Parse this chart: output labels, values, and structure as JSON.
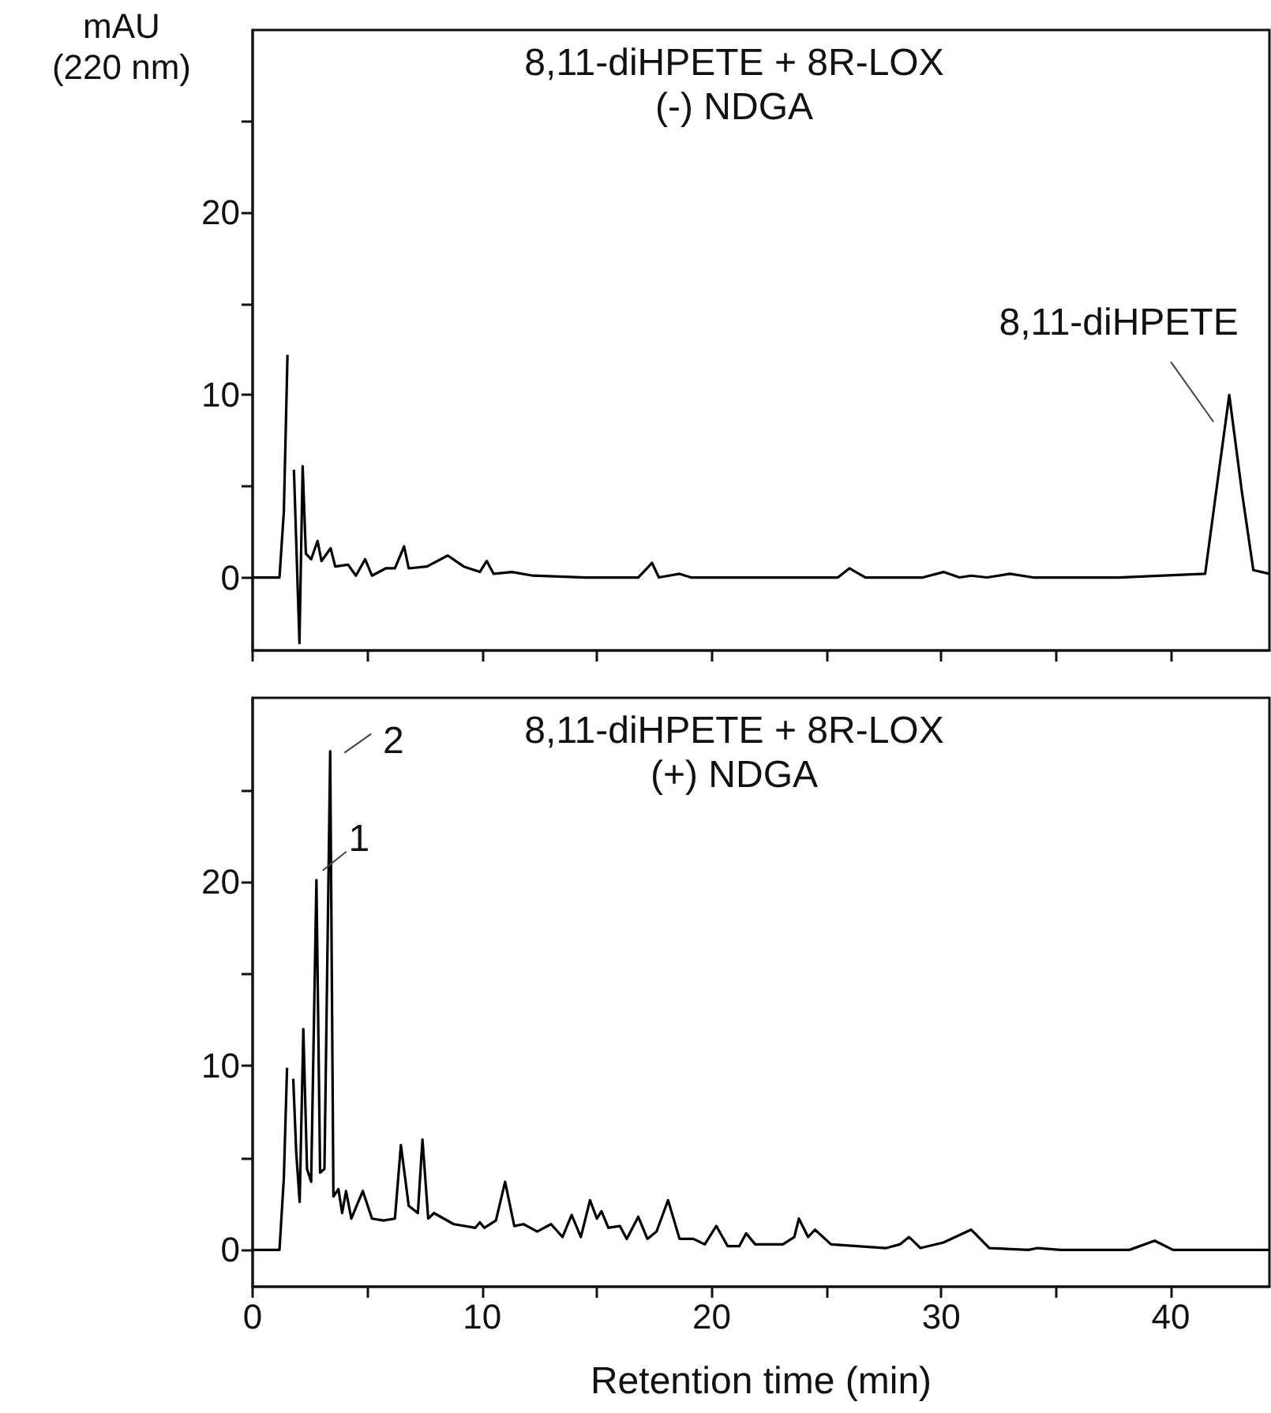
{
  "chart_data": [
    {
      "type": "line",
      "title": "8,11-diHPETE + 8R-LOX",
      "subtitle": "(-) NDGA",
      "ylabel": "mAU\n(220 nm)",
      "xlim": [
        0,
        44.3
      ],
      "ylim": [
        -4,
        30
      ],
      "xticks": [
        0,
        {
          "value": 5,
          "label": null
        },
        10,
        {
          "value": 15,
          "label": null
        },
        20,
        {
          "value": 25,
          "label": null
        },
        30,
        {
          "value": 35,
          "label": null
        },
        40
      ],
      "yticks": [
        0,
        {
          "value": 5,
          "label": null
        },
        10,
        {
          "value": 15,
          "label": null
        },
        20,
        {
          "value": 25,
          "label": null
        }
      ],
      "tick_labels": "y",
      "grid": false,
      "annotations": [
        {
          "text": "8,11-diHPETE",
          "x": 42.55,
          "y": 10.0
        }
      ],
      "series": [
        {
          "color": "#000000",
          "x": [
            0,
            1.17,
            1.36,
            1.52,
            1.6,
            1.7,
            1.8,
            2.04,
            2.18,
            2.32,
            2.55,
            2.83,
            3.0,
            3.4,
            3.6,
            4.16,
            4.5,
            4.9,
            5.2,
            5.8,
            6.2,
            6.6,
            6.8,
            7.6,
            8.5,
            9.2,
            9.9,
            10.2,
            10.5,
            11.3,
            12.2,
            14.5,
            16.8,
            17.4,
            17.7,
            18.6,
            19.1,
            21.2,
            25.5,
            26.0,
            26.7,
            29.2,
            30.1,
            30.8,
            31.3,
            32.0,
            33.0,
            34.0,
            37.7,
            41.5,
            41.98,
            42.55,
            43.1,
            43.6,
            44.3
          ],
          "values": [
            0,
            0,
            3.6,
            12.2,
            null,
            null,
            5.9,
            -3.6,
            6.1,
            1.3,
            1.0,
            2.0,
            0.9,
            1.6,
            0.6,
            0.7,
            0.1,
            1.0,
            0.1,
            0.5,
            0.5,
            1.7,
            0.5,
            0.6,
            1.2,
            0.6,
            0.3,
            0.9,
            0.2,
            0.3,
            0.1,
            0,
            0,
            0.8,
            0,
            0.2,
            0,
            0,
            0,
            0.5,
            0,
            0,
            0.3,
            0,
            0.1,
            0,
            0.2,
            0,
            0,
            0.2,
            4.7,
            10.0,
            4.7,
            0.4,
            0.2
          ]
        }
      ]
    },
    {
      "type": "line",
      "title": "8,11-diHPETE + 8R-LOX",
      "subtitle": "(+) NDGA",
      "xlabel": "Retention time (min)",
      "xlim": [
        0,
        44.3
      ],
      "ylim": [
        -2,
        30
      ],
      "xticks": [
        0,
        {
          "value": 5,
          "label": null
        },
        10,
        {
          "value": 15,
          "label": null
        },
        20,
        {
          "value": 25,
          "label": null
        },
        30,
        {
          "value": 35,
          "label": null
        },
        40
      ],
      "yticks": [
        0,
        {
          "value": 5,
          "label": null
        },
        10,
        {
          "value": 15,
          "label": null
        },
        20,
        {
          "value": 25,
          "label": null
        }
      ],
      "grid": false,
      "annotations": [
        {
          "text": "1",
          "x": 2.78,
          "y": 20.1
        },
        {
          "text": "2",
          "x": 3.38,
          "y": 27.1
        }
      ],
      "series": [
        {
          "color": "#000000",
          "x": [
            0,
            1.17,
            1.36,
            1.5,
            1.6,
            1.7,
            1.77,
            1.9,
            2.05,
            2.21,
            2.37,
            2.55,
            2.78,
            2.94,
            3.13,
            3.38,
            3.52,
            3.74,
            3.9,
            4.07,
            4.3,
            4.8,
            5.2,
            5.7,
            6.2,
            6.46,
            6.8,
            7.2,
            7.4,
            7.65,
            7.9,
            8.76,
            9.7,
            9.9,
            10.1,
            10.6,
            11.0,
            11.4,
            11.8,
            12.4,
            13.0,
            13.5,
            13.9,
            14.3,
            14.7,
            15.0,
            15.2,
            15.5,
            16.0,
            16.3,
            16.8,
            17.2,
            17.6,
            18.1,
            18.6,
            19.2,
            19.7,
            20.2,
            20.7,
            21.2,
            21.5,
            21.9,
            23.1,
            23.6,
            23.8,
            24.2,
            24.5,
            25.2,
            27.6,
            28.2,
            28.6,
            29.1,
            30.1,
            31.3,
            32.1,
            33.8,
            34.2,
            35.2,
            38.2,
            39.3,
            40.1,
            44.3
          ],
          "values": [
            0,
            0,
            3.9,
            9.9,
            null,
            null,
            9.3,
            5.3,
            2.6,
            12.0,
            4.4,
            3.7,
            20.1,
            4.2,
            4.4,
            27.1,
            2.9,
            3.3,
            2.0,
            3.2,
            1.7,
            3.2,
            1.7,
            1.6,
            1.7,
            5.7,
            2.4,
            2.0,
            6.0,
            1.7,
            2.0,
            1.4,
            1.2,
            1.5,
            1.2,
            1.6,
            3.7,
            1.3,
            1.4,
            1.0,
            1.4,
            0.7,
            1.9,
            0.7,
            2.7,
            1.7,
            2.1,
            1.2,
            1.3,
            0.6,
            1.8,
            0.6,
            1.0,
            2.7,
            0.6,
            0.6,
            0.3,
            1.3,
            0.2,
            0.2,
            0.9,
            0.3,
            0.3,
            0.7,
            1.7,
            0.7,
            1.1,
            0.3,
            0.1,
            0.3,
            0.7,
            0.1,
            0.4,
            1.1,
            0.1,
            0,
            0.1,
            0,
            0,
            0.5,
            0,
            0
          ]
        }
      ]
    }
  ]
}
